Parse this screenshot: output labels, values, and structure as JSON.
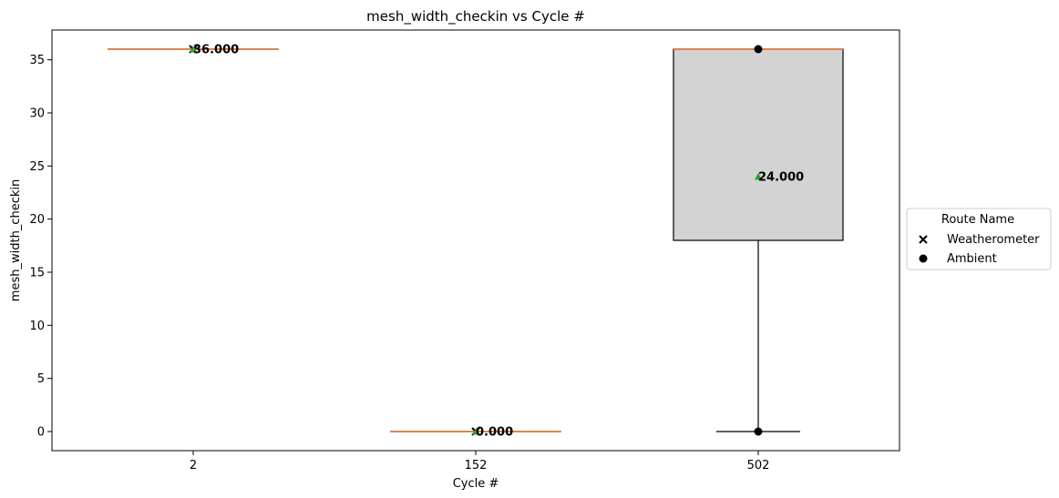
{
  "chart_data": {
    "type": "box",
    "title": "mesh_width_checkin vs Cycle #",
    "xlabel": "Cycle #",
    "ylabel": "mesh_width_checkin",
    "categories": [
      "2",
      "152",
      "502"
    ],
    "ylim": [
      -1.8,
      37.8
    ],
    "yticks": [
      0,
      5,
      10,
      15,
      20,
      25,
      30,
      35
    ],
    "boxes": [
      {
        "category": "2",
        "min": 36,
        "q1": 36,
        "median": 36,
        "q3": 36,
        "max": 36,
        "mean": 36,
        "mean_label": "36.000"
      },
      {
        "category": "152",
        "min": 0,
        "q1": 0,
        "median": 0,
        "q3": 0,
        "max": 0,
        "mean": 0,
        "mean_label": "0.000"
      },
      {
        "category": "502",
        "min": 0,
        "q1": 18,
        "median": 36,
        "q3": 36,
        "max": 36,
        "mean": 24,
        "mean_label": "24.000"
      }
    ],
    "points": [
      {
        "category": "2",
        "y": 36,
        "route": "Weatherometer"
      },
      {
        "category": "152",
        "y": 0,
        "route": "Weatherometer"
      },
      {
        "category": "502",
        "y": 36,
        "route": "Ambient"
      },
      {
        "category": "502",
        "y": 0,
        "route": "Ambient"
      }
    ],
    "legend": {
      "title": "Route Name",
      "placement": "center-right-outside",
      "entries": [
        {
          "name": "Weatherometer",
          "marker": "x"
        },
        {
          "name": "Ambient",
          "marker": "circle"
        }
      ]
    },
    "colors": {
      "box_fill": "#d3d3d3",
      "box_edge": "#000000",
      "median": "#dd8452",
      "mean_marker": "#2ca02c",
      "points": "#000000"
    },
    "grid": false
  }
}
